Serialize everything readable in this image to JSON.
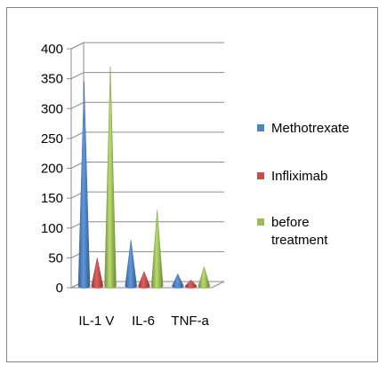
{
  "chart_data": {
    "type": "bar",
    "style": "3d-cone",
    "categories": [
      "IL-1 V",
      "IL-6",
      "TNF-a"
    ],
    "series": [
      {
        "name": "Methotrexate",
        "values": [
          340,
          75,
          18
        ],
        "color": "#4f81bd"
      },
      {
        "name": "Infliximab",
        "values": [
          45,
          22,
          8
        ],
        "color": "#c0504d"
      },
      {
        "name": "before treatment",
        "values": [
          365,
          125,
          30
        ],
        "color": "#9bbb59"
      }
    ],
    "yticks": [
      "0",
      "50",
      "100",
      "150",
      "200",
      "250",
      "300",
      "350",
      "400"
    ],
    "ylim": [
      0,
      400
    ],
    "grid": true,
    "legend_position": "right",
    "title": "",
    "xlabel": "",
    "ylabel": ""
  }
}
